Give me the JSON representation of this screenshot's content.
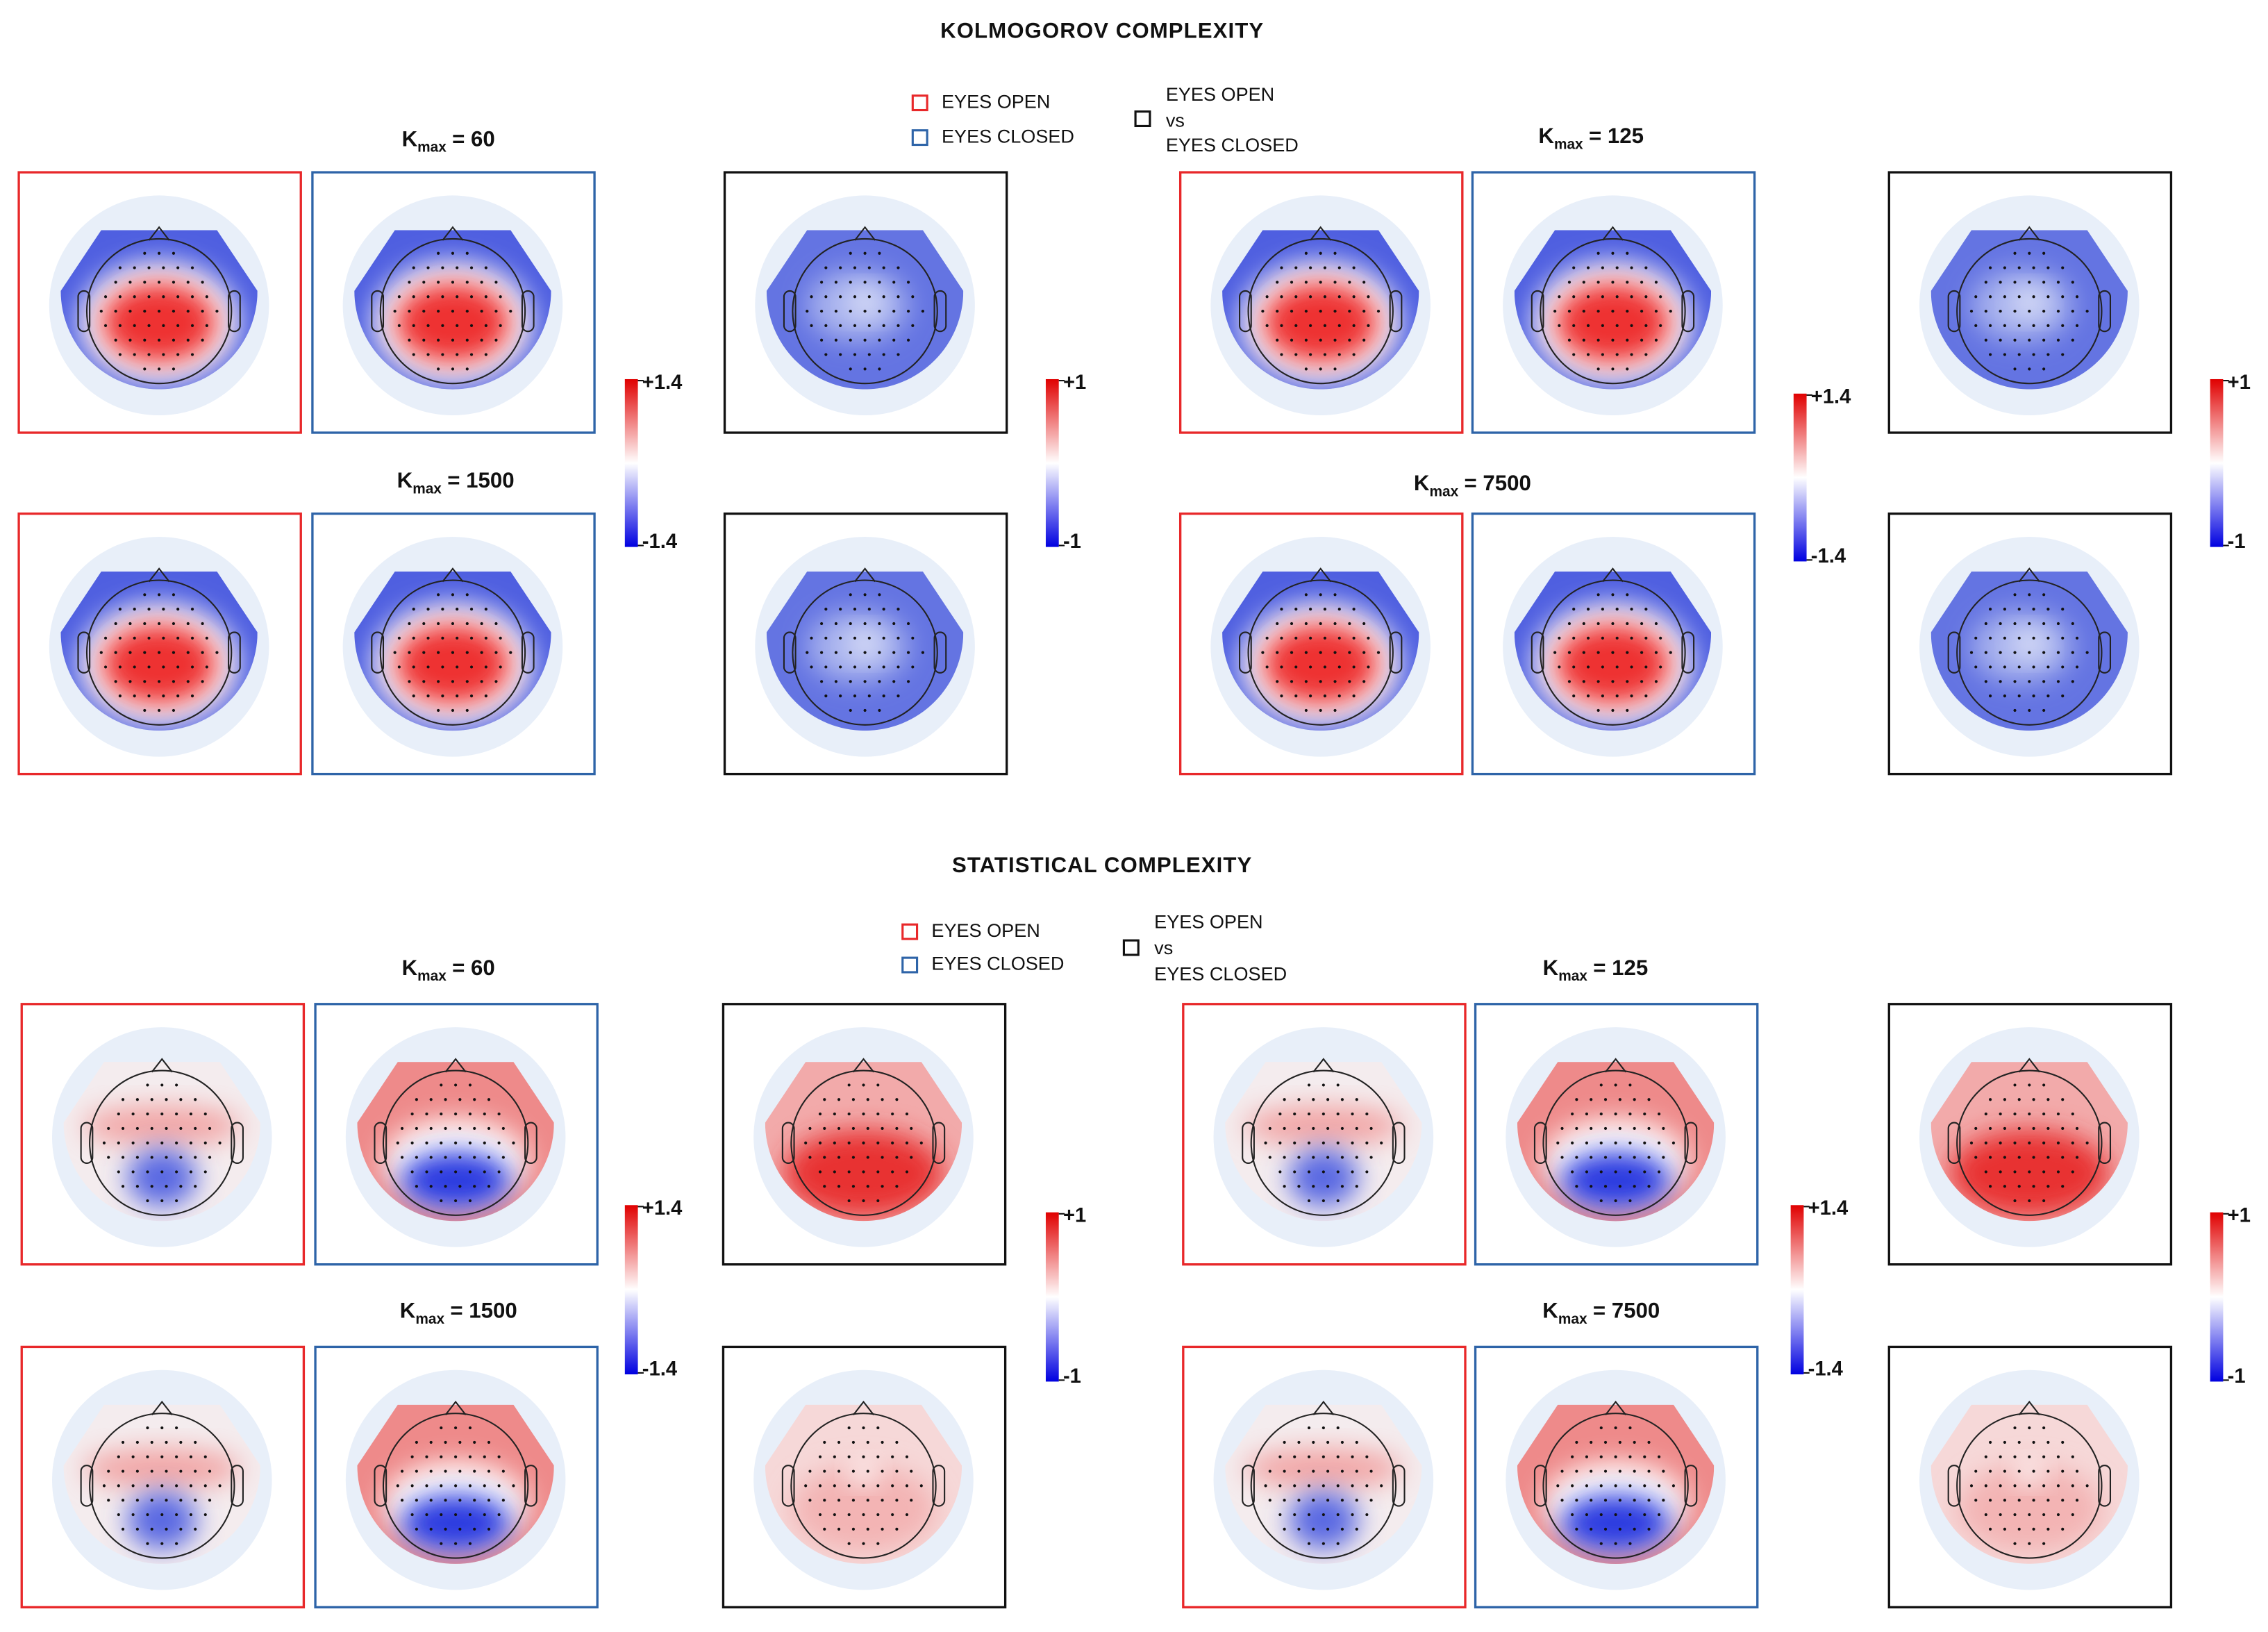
{
  "sections": [
    {
      "title": "KOLMOGOROV COMPLEXITY",
      "legend": {
        "eyes_open": "EYES OPEN",
        "eyes_closed": "EYES CLOSED",
        "comparison": [
          "EYES OPEN",
          "vs",
          "EYES CLOSED"
        ]
      },
      "groups": [
        {
          "label": {
            "base": "K",
            "sub": "max",
            "value": "= 60"
          }
        },
        {
          "label": {
            "base": "K",
            "sub": "max",
            "value": "= 1500"
          }
        },
        {
          "label": {
            "base": "K",
            "sub": "max",
            "value": "= 125"
          }
        },
        {
          "label": {
            "base": "K",
            "sub": "max",
            "value": "= 7500"
          }
        }
      ],
      "colorbars": [
        {
          "max": "+1.4",
          "min": "-1.4"
        },
        {
          "max": "+1",
          "min": "-1"
        },
        {
          "max": "+1.4",
          "min": "-1.4"
        },
        {
          "max": "+1",
          "min": "-1"
        }
      ]
    },
    {
      "title": "STATISTICAL COMPLEXITY",
      "legend": {
        "eyes_open": "EYES OPEN",
        "eyes_closed": "EYES CLOSED",
        "comparison": [
          "EYES OPEN",
          "vs",
          "EYES CLOSED"
        ]
      },
      "groups": [
        {
          "label": {
            "base": "K",
            "sub": "max",
            "value": "= 60"
          }
        },
        {
          "label": {
            "base": "K",
            "sub": "max",
            "value": "= 1500"
          }
        },
        {
          "label": {
            "base": "K",
            "sub": "max",
            "value": "= 125"
          }
        },
        {
          "label": {
            "base": "K",
            "sub": "max",
            "value": "= 7500"
          }
        }
      ],
      "colorbars": [
        {
          "max": "+1.4",
          "min": "-1.4"
        },
        {
          "max": "+1",
          "min": "-1"
        },
        {
          "max": "+1.4",
          "min": "-1.4"
        },
        {
          "max": "+1",
          "min": "-1"
        }
      ]
    }
  ]
}
